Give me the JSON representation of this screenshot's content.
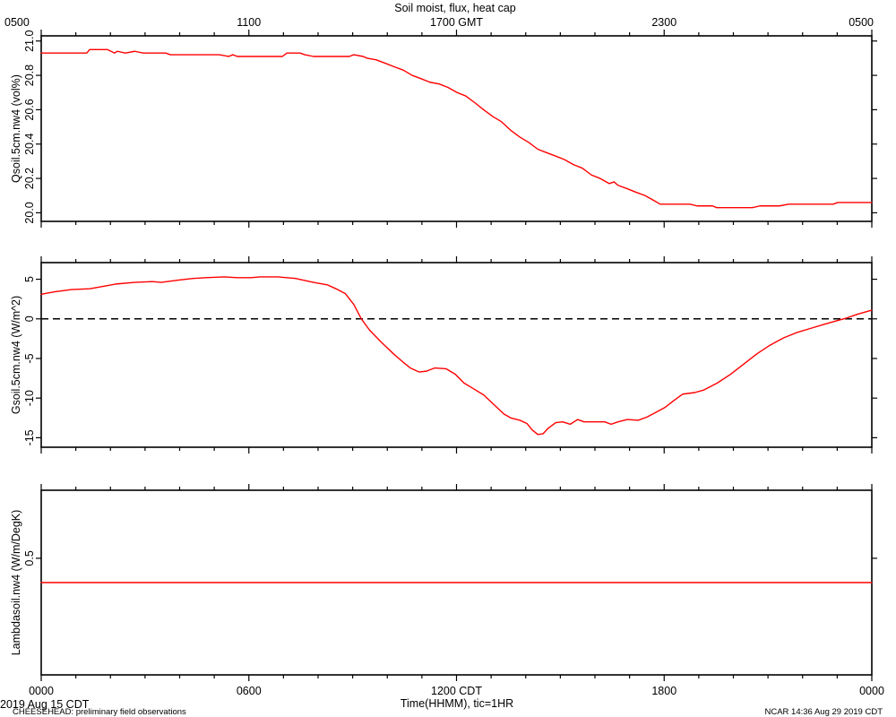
{
  "chart_data": [
    {
      "type": "line",
      "title": "Soil moist, flux, heat cap",
      "ylabel": "Qsoil.5cm.nw4 (vol%)",
      "x_top_tick_labels": [
        "0500",
        "1100",
        "1700 GMT",
        "2300",
        "0500"
      ],
      "xticks": [
        "0000",
        "0600",
        "1200",
        "1800",
        "2400"
      ],
      "xlim": [
        "0000",
        "2400"
      ],
      "yticks": [
        20.0,
        20.2,
        20.4,
        20.6,
        20.8,
        21.0
      ],
      "ytick_labels": [
        "20.0",
        "20.2",
        "20.4",
        "20.6",
        "20.8",
        "21.0"
      ],
      "ylim": [
        19.95,
        21.03
      ],
      "grid": false,
      "series": [
        {
          "color": "#ff0000",
          "x": [
            "0000",
            "0119",
            "0124",
            "0155",
            "0207",
            "0212",
            "0226",
            "0242",
            "0257",
            "0336",
            "0344",
            "0509",
            "0525",
            "0532",
            "0540",
            "0658",
            "0706",
            "0729",
            "0737",
            "0752",
            "0854",
            "0902",
            "0918",
            "0925",
            "0941",
            "0957",
            "1012",
            "1028",
            "1043",
            "1059",
            "1114",
            "1130",
            "1145",
            "1201",
            "1216",
            "1232",
            "1247",
            "1303",
            "1318",
            "1334",
            "1350",
            "1405",
            "1421",
            "1436",
            "1452",
            "1507",
            "1523",
            "1538",
            "1554",
            "1609",
            "1625",
            "1633",
            "1640",
            "1656",
            "1711",
            "1727",
            "1743",
            "1753",
            "1814",
            "1821",
            "1845",
            "1857",
            "1924",
            "1931",
            "2033",
            "2046",
            "2120",
            "2136",
            "2253",
            "2301",
            "2400"
          ],
          "y": [
            20.93,
            20.93,
            20.95,
            20.95,
            20.93,
            20.94,
            20.93,
            20.94,
            20.93,
            20.93,
            20.92,
            20.92,
            20.91,
            20.92,
            20.91,
            20.91,
            20.93,
            20.93,
            20.92,
            20.91,
            20.91,
            20.92,
            20.91,
            20.9,
            20.89,
            20.87,
            20.85,
            20.83,
            20.8,
            20.78,
            20.76,
            20.75,
            20.73,
            20.7,
            20.68,
            20.64,
            20.6,
            20.56,
            20.53,
            20.48,
            20.44,
            20.41,
            20.37,
            20.35,
            20.33,
            20.31,
            20.28,
            20.26,
            20.22,
            20.2,
            20.17,
            20.18,
            20.16,
            20.14,
            20.12,
            20.1,
            20.07,
            20.05,
            20.05,
            20.05,
            20.05,
            20.04,
            20.04,
            20.03,
            20.03,
            20.04,
            20.04,
            20.05,
            20.05,
            20.06,
            20.06
          ]
        }
      ]
    },
    {
      "type": "line",
      "ylabel": "Gsoil.5cm.nw4 (W/m^2)",
      "xticks": [
        "0000",
        "0600",
        "1200",
        "1800",
        "2400"
      ],
      "xlim": [
        "0000",
        "2400"
      ],
      "yticks": [
        5,
        0,
        -5,
        -10,
        -15
      ],
      "ytick_labels": [
        "5",
        "0",
        "-5",
        "-10",
        "-15"
      ],
      "ylim": [
        -16.2,
        7.1
      ],
      "grid": false,
      "reference_lines": [
        {
          "y": 0,
          "style": "dashed",
          "color": "#000000"
        }
      ],
      "series": [
        {
          "color": "#ff0000",
          "x": [
            "0000",
            "0022",
            "0053",
            "0124",
            "0147",
            "0210",
            "0242",
            "0313",
            "0328",
            "0359",
            "0423",
            "0446",
            "0517",
            "0540",
            "0604",
            "0619",
            "0650",
            "0721",
            "0752",
            "0816",
            "0831",
            "0847",
            "0902",
            "0915",
            "0929",
            "0949",
            "1012",
            "1028",
            "1040",
            "1055",
            "1108",
            "1122",
            "1142",
            "1158",
            "1213",
            "1229",
            "1247",
            "1306",
            "1322",
            "1334",
            "1350",
            "1402",
            "1411",
            "1421",
            "1430",
            "1439",
            "1452",
            "1504",
            "1517",
            "1530",
            "1541",
            "1602",
            "1617",
            "1628",
            "1640",
            "1656",
            "1715",
            "1730",
            "1743",
            "1801",
            "1817",
            "1832",
            "1853",
            "1908",
            "1932",
            "1955",
            "2018",
            "2041",
            "2104",
            "2127",
            "2151",
            "2214",
            "2237",
            "2301",
            "2316",
            "2336",
            "2400"
          ],
          "y": [
            3.1,
            3.4,
            3.7,
            3.8,
            4.1,
            4.4,
            4.6,
            4.7,
            4.6,
            4.9,
            5.1,
            5.2,
            5.3,
            5.2,
            5.2,
            5.3,
            5.3,
            5.1,
            4.6,
            4.3,
            3.8,
            3.2,
            1.8,
            0.0,
            -1.4,
            -2.9,
            -4.5,
            -5.5,
            -6.2,
            -6.7,
            -6.6,
            -6.2,
            -6.3,
            -7.0,
            -8.1,
            -8.8,
            -9.6,
            -10.9,
            -12.0,
            -12.5,
            -12.8,
            -13.2,
            -14.0,
            -14.6,
            -14.5,
            -13.8,
            -13.1,
            -13.0,
            -13.3,
            -12.7,
            -13.0,
            -13.0,
            -13.0,
            -13.3,
            -13.0,
            -12.7,
            -12.8,
            -12.4,
            -11.9,
            -11.2,
            -10.3,
            -9.5,
            -9.3,
            -9.0,
            -8.1,
            -7.0,
            -5.7,
            -4.4,
            -3.3,
            -2.4,
            -1.7,
            -1.2,
            -0.7,
            -0.2,
            0.1,
            0.6,
            1.1
          ]
        }
      ]
    },
    {
      "type": "line",
      "ylabel": "Lambdasoil.nw4 (W/m/DegK)",
      "xlabel": "Time(HHMM), tic=1HR",
      "xtick_labels": [
        "0000",
        "0600",
        "1200 CDT",
        "1800",
        "0000"
      ],
      "xticks": [
        "0000",
        "0600",
        "1200",
        "1800",
        "2400"
      ],
      "xlim": [
        "0000",
        "2400"
      ],
      "yticks": [
        0.5
      ],
      "ytick_labels": [
        "0.5"
      ],
      "ylim": [
        0.02,
        0.78
      ],
      "grid": false,
      "series": [
        {
          "color": "#ff0000",
          "x": [
            "0000",
            "2400"
          ],
          "y": [
            0.4,
            0.4
          ]
        }
      ]
    }
  ],
  "figure": {
    "date_label": "2019 Aug 15 CDT",
    "footer_left": "CHEESEHEAD: preliminary field observations",
    "footer_right": "NCAR 14:36 Aug 29 2019 CDT"
  }
}
